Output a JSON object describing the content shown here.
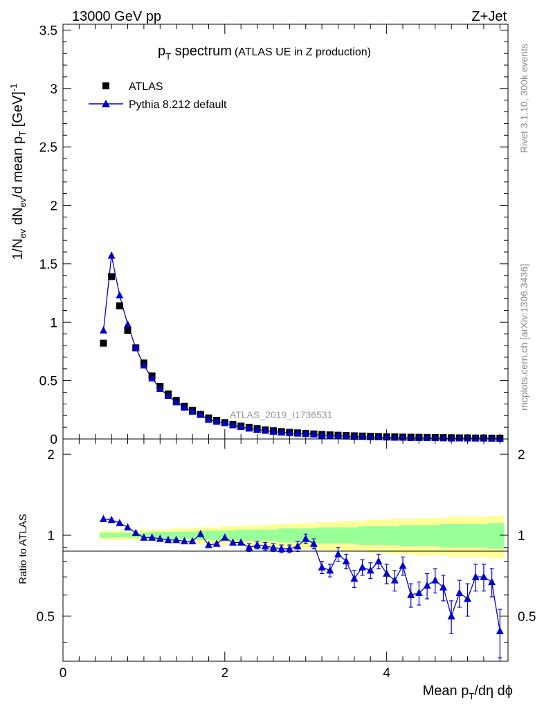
{
  "header": {
    "left": "13000 GeV pp",
    "right": "Z+Jet"
  },
  "side": {
    "rivet": "Rivet 3.1.10,  300k events",
    "mcplots": "mcplots.cern.ch [arXiv:1306.3436]"
  },
  "chart_data": [
    {
      "type": "scatter",
      "panel": "main",
      "title": {
        "p": "p",
        "sub": "T",
        "rest": " spectrum",
        "note": "(ATLAS UE in Z production)"
      },
      "ylabel": "1/N_ev dN_ev/d mean p_T [GeV]^-1",
      "ylabel_parts": {
        "a": "1/N",
        "a_sub": "ev",
        "b": " dN",
        "b_sub": "ev",
        "c": "/d mean p",
        "c_sub": "T",
        "d": " [GeV]",
        "d_sup": "-1"
      },
      "analysis_tag": "ATLAS_2019_I1736531",
      "xlim": [
        0,
        5.5
      ],
      "ylim": [
        0,
        3.55
      ],
      "y_ticks": [
        "0",
        "0.5",
        "1",
        "1.5",
        "2",
        "2.5",
        "3",
        "3.5"
      ],
      "x": [
        0.5,
        0.6,
        0.7,
        0.8,
        0.9,
        1.0,
        1.1,
        1.2,
        1.3,
        1.4,
        1.5,
        1.6,
        1.7,
        1.8,
        1.9,
        2.0,
        2.1,
        2.2,
        2.3,
        2.4,
        2.5,
        2.6,
        2.7,
        2.8,
        2.9,
        3.0,
        3.1,
        3.2,
        3.3,
        3.4,
        3.5,
        3.6,
        3.7,
        3.8,
        3.9,
        4.0,
        4.1,
        4.2,
        4.3,
        4.4,
        4.5,
        4.6,
        4.7,
        4.8,
        4.9,
        5.0,
        5.1,
        5.2,
        5.3,
        5.4
      ],
      "series": [
        {
          "name": "ATLAS",
          "marker": "square",
          "color": "#000000",
          "values": [
            0.82,
            1.39,
            1.14,
            0.93,
            0.78,
            0.65,
            0.54,
            0.45,
            0.385,
            0.33,
            0.28,
            0.245,
            0.21,
            0.18,
            0.16,
            0.14,
            0.125,
            0.11,
            0.1,
            0.088,
            0.078,
            0.07,
            0.063,
            0.057,
            0.052,
            0.047,
            0.043,
            0.039,
            0.035,
            0.032,
            0.029,
            0.027,
            0.025,
            0.023,
            0.021,
            0.019,
            0.018,
            0.016,
            0.015,
            0.014,
            0.013,
            0.012,
            0.011,
            0.01,
            0.009,
            0.009,
            0.008,
            0.008,
            0.007,
            0.007
          ]
        },
        {
          "name": "Pythia 8.212 default",
          "marker": "triangle",
          "color": "#0000cc",
          "values": [
            0.93,
            1.57,
            1.23,
            0.98,
            0.78,
            0.63,
            0.52,
            0.43,
            0.37,
            0.315,
            0.27,
            0.235,
            0.21,
            0.165,
            0.148,
            0.137,
            0.118,
            0.104,
            0.09,
            0.08,
            0.071,
            0.063,
            0.056,
            0.051,
            0.047,
            0.046,
            0.04,
            0.03,
            0.026,
            0.027,
            0.022,
            0.019,
            0.019,
            0.017,
            0.016,
            0.013,
            0.012,
            0.012,
            0.009,
            0.009,
            0.009,
            0.008,
            0.007,
            0.005,
            0.006,
            0.005,
            0.006,
            0.006,
            0.005,
            0.003
          ]
        }
      ]
    },
    {
      "type": "line",
      "panel": "ratio",
      "ylabel": "Ratio to ATLAS",
      "xlabel": "Mean p_T/dη dϕ",
      "xlabel_parts": {
        "a": "Mean p",
        "sub": "T",
        "b": "/dη dϕ"
      },
      "xlim": [
        0,
        5.5
      ],
      "ylim": [
        0.34,
        2.28
      ],
      "x_ticks": [
        "0",
        "2",
        "4"
      ],
      "y_ticks": [
        "0.5",
        "1",
        "2"
      ],
      "x": [
        0.5,
        0.6,
        0.7,
        0.8,
        0.9,
        1.0,
        1.1,
        1.2,
        1.3,
        1.4,
        1.5,
        1.6,
        1.7,
        1.8,
        1.9,
        2.0,
        2.1,
        2.2,
        2.3,
        2.4,
        2.5,
        2.6,
        2.7,
        2.8,
        2.9,
        3.0,
        3.1,
        3.2,
        3.3,
        3.4,
        3.5,
        3.6,
        3.7,
        3.8,
        3.9,
        4.0,
        4.1,
        4.2,
        4.3,
        4.4,
        4.5,
        4.6,
        4.7,
        4.8,
        4.9,
        5.0,
        5.1,
        5.2,
        5.3,
        5.4
      ],
      "ratio": [
        1.15,
        1.14,
        1.11,
        1.07,
        1.02,
        0.98,
        0.98,
        0.97,
        0.96,
        0.96,
        0.95,
        0.95,
        1.01,
        0.92,
        0.93,
        0.98,
        0.94,
        0.94,
        0.9,
        0.92,
        0.91,
        0.9,
        0.89,
        0.89,
        0.91,
        0.97,
        0.93,
        0.76,
        0.74,
        0.85,
        0.8,
        0.69,
        0.76,
        0.74,
        0.8,
        0.72,
        0.68,
        0.77,
        0.6,
        0.61,
        0.65,
        0.68,
        0.64,
        0.5,
        0.61,
        0.58,
        0.7,
        0.7,
        0.67,
        0.44
      ],
      "ratio_err": [
        0.01,
        0.01,
        0.01,
        0.01,
        0.01,
        0.01,
        0.01,
        0.01,
        0.01,
        0.01,
        0.01,
        0.01,
        0.01,
        0.02,
        0.02,
        0.02,
        0.02,
        0.02,
        0.03,
        0.03,
        0.03,
        0.03,
        0.03,
        0.03,
        0.04,
        0.04,
        0.04,
        0.04,
        0.04,
        0.05,
        0.05,
        0.05,
        0.05,
        0.05,
        0.05,
        0.06,
        0.06,
        0.06,
        0.06,
        0.06,
        0.07,
        0.07,
        0.07,
        0.07,
        0.07,
        0.08,
        0.08,
        0.08,
        0.08,
        0.09
      ],
      "band_outer": [
        0.04,
        0.04,
        0.04,
        0.04,
        0.04,
        0.05,
        0.05,
        0.05,
        0.05,
        0.06,
        0.06,
        0.06,
        0.07,
        0.07,
        0.07,
        0.08,
        0.08,
        0.08,
        0.09,
        0.09,
        0.09,
        0.1,
        0.1,
        0.1,
        0.11,
        0.11,
        0.11,
        0.12,
        0.12,
        0.12,
        0.13,
        0.13,
        0.13,
        0.14,
        0.14,
        0.14,
        0.15,
        0.15,
        0.15,
        0.16,
        0.16,
        0.16,
        0.16,
        0.17,
        0.17,
        0.17,
        0.17,
        0.17,
        0.18,
        0.18
      ],
      "band_inner": [
        0.02,
        0.02,
        0.02,
        0.02,
        0.02,
        0.02,
        0.03,
        0.03,
        0.03,
        0.03,
        0.03,
        0.03,
        0.04,
        0.04,
        0.04,
        0.04,
        0.04,
        0.05,
        0.05,
        0.05,
        0.05,
        0.05,
        0.06,
        0.06,
        0.06,
        0.06,
        0.06,
        0.07,
        0.07,
        0.07,
        0.07,
        0.07,
        0.08,
        0.08,
        0.08,
        0.08,
        0.08,
        0.09,
        0.09,
        0.09,
        0.09,
        0.09,
        0.1,
        0.1,
        0.1,
        0.1,
        0.1,
        0.1,
        0.11,
        0.11
      ],
      "colors": {
        "outer": "#ffff99",
        "inner": "#99ff99",
        "line": "#0000cc"
      }
    }
  ]
}
